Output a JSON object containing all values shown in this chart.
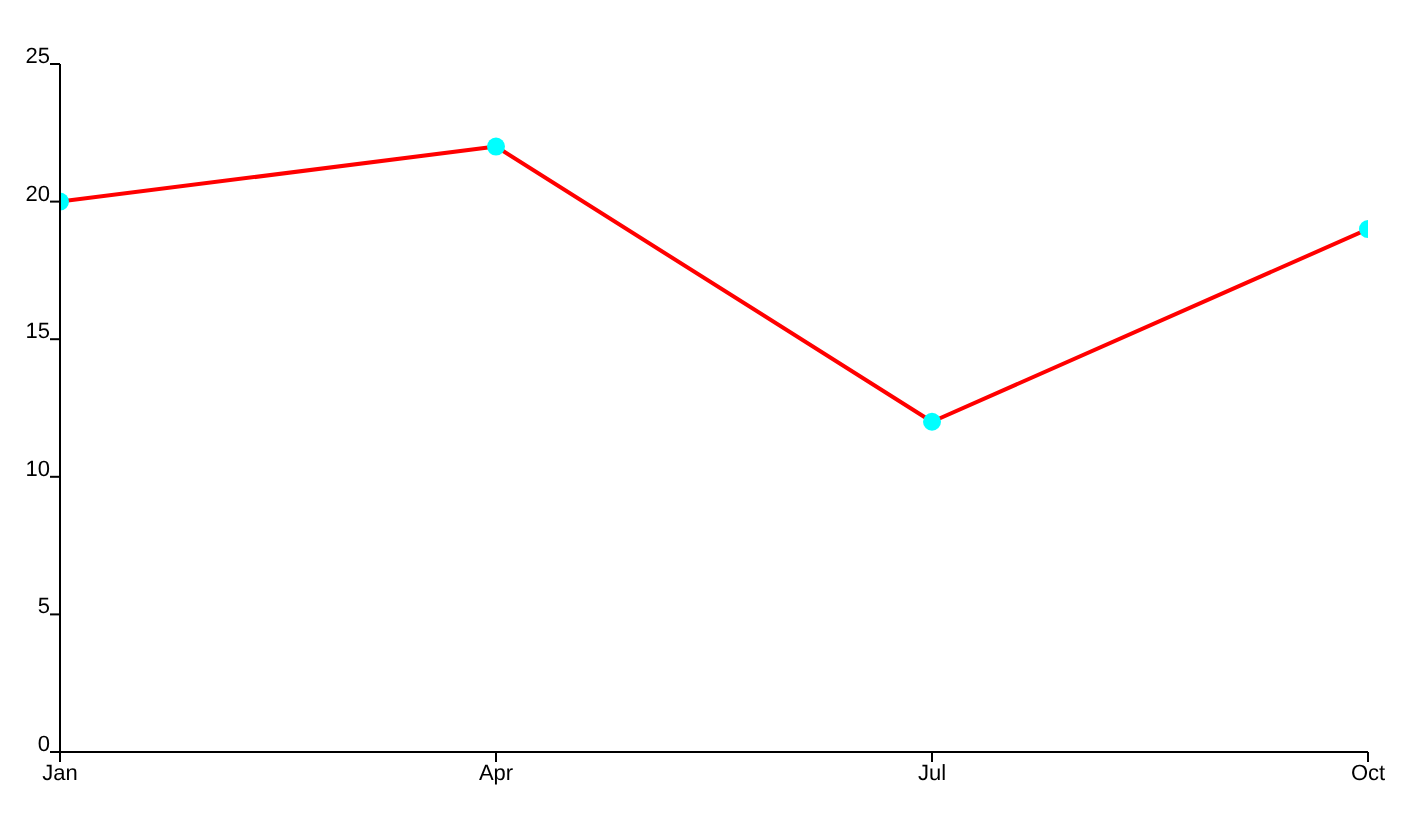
{
  "chart_data": {
    "type": "line",
    "categories": [
      "Jan",
      "Apr",
      "Jul",
      "Oct"
    ],
    "series": [
      {
        "color": "#ff0000",
        "colors": [
          "#00ffff",
          "#00ffff",
          "#00ffff",
          "#00ffff"
        ],
        "values": [
          20,
          22,
          12,
          19
        ]
      }
    ],
    "ylim": [
      0,
      25
    ],
    "yticks": [
      0,
      5,
      10,
      15,
      20,
      25
    ],
    "marker": "circle",
    "line_style": "solid"
  }
}
